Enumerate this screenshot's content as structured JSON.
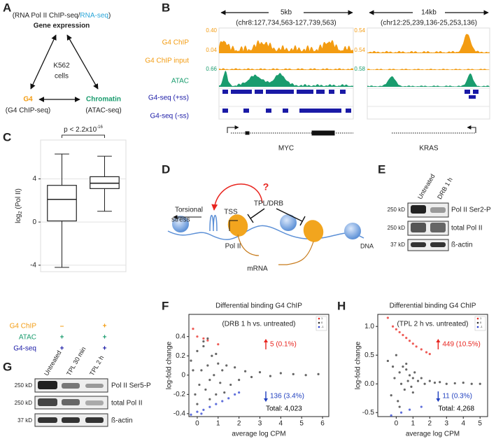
{
  "panel_labels": {
    "a": "A",
    "b": "B",
    "c": "C",
    "d": "D",
    "e": "E",
    "f": "F",
    "g": "G",
    "h": "H"
  },
  "panel_a": {
    "header_open": "(RNA Pol II ChIP-seq/",
    "header_rna": "RNA-seq",
    "header_close": ")",
    "title": "Gene expression",
    "center_line1": "K562",
    "center_line2": "cells",
    "g4": "G4",
    "g4_method": "(G4 ChIP-seq)",
    "chromatin": "Chromatin",
    "chromatin_method": "(ATAC-seq)"
  },
  "panel_b": {
    "tracks": [
      "G4 ChIP",
      "G4 ChIP input",
      "ATAC",
      "G4-seq (+ss)",
      "G4-seq (-ss)"
    ],
    "regions": [
      {
        "span": "5kb",
        "coords": "(chr8:127,734,563-127,739,563)",
        "scales": [
          "0.40",
          "0.04",
          "0.66"
        ],
        "gene": "MYC"
      },
      {
        "span": "14kb",
        "coords": "(chr12:25,239,136-25,253,136)",
        "scales": [
          "0.54",
          "0.54",
          "0.58"
        ],
        "gene": "KRAS"
      }
    ]
  },
  "panel_d": {
    "question": "?",
    "torsional_line1": "Torsional",
    "torsional_line2": "stress",
    "tss": "TSS",
    "inhibitors": "TPL/DRB",
    "pol2": "Pol II",
    "mrna": "mRNA",
    "dna": "DNA"
  },
  "panel_e": {
    "lanes": [
      "Untreated",
      "DRB 1 h"
    ],
    "blots": [
      {
        "size": "250 kD",
        "label": "Pol II Ser2-P"
      },
      {
        "size": "250 kD",
        "label": "total Pol II"
      },
      {
        "size": "37 kD",
        "label": "ß-actin"
      }
    ]
  },
  "panel_g": {
    "lanes": [
      "Untreated",
      "TPL 30 min",
      "TPL 2 h"
    ],
    "blots": [
      {
        "size": "250 kD",
        "label": "Pol II Ser5-P"
      },
      {
        "size": "250 kD",
        "label": "total Pol II"
      },
      {
        "size": "37 kD",
        "label": "ß-actin"
      }
    ]
  },
  "chart_data": [
    {
      "type": "box",
      "ylabel": "log",
      "ylabel_subscript": "2",
      "ylabel_suffix": "(Pol II)",
      "boxes": [
        {
          "whislo": -4.2,
          "q1": 0.1,
          "med": 2.1,
          "q3": 3.4,
          "whishi": 6.3
        },
        {
          "whislo": 1.0,
          "q1": 3.1,
          "med": 3.6,
          "q3": 4.2,
          "whishi": 6.1
        }
      ],
      "ylim": [
        -4.6,
        7.6
      ],
      "yticks": [
        -4,
        0,
        4
      ],
      "grid": true,
      "color": "#222222",
      "annotation": "p < 2.2x10",
      "annotation_superscript": "-16",
      "rows": [
        {
          "label": "G4 ChIP",
          "color": "#f39c12",
          "values": [
            "–",
            "+"
          ]
        },
        {
          "label": "ATAC",
          "color": "#1a9c6e",
          "values": [
            "+",
            "+"
          ]
        },
        {
          "label": "G4-seq",
          "color": "#1a1aa6",
          "values": [
            "+",
            "+"
          ]
        }
      ]
    },
    {
      "type": "scatter",
      "title": "Differential binding G4 ChIP",
      "subtitle": "(DRB 1 h vs. untreated)",
      "xlabel": "average log CPM",
      "ylabel": "log-fold change",
      "xlim": [
        -0.4,
        6.3
      ],
      "xticks": [
        0,
        1,
        2,
        3,
        4,
        5,
        6
      ],
      "ylim": [
        -0.43,
        0.63
      ],
      "yticks": [
        -0.4,
        -0.2,
        0,
        0.2,
        0.4
      ],
      "legend": "upper right",
      "series": [
        {
          "name": "1",
          "color": "#e8251f",
          "x": [
            -0.2,
            0.0,
            0.3,
            0.5,
            1.0
          ],
          "values": [
            0.48,
            0.4,
            0.38,
            0.36,
            0.32
          ]
        },
        {
          "name": "0",
          "color": "#333333",
          "x": [
            -0.3,
            -0.1,
            0,
            0.1,
            0.2,
            0.3,
            0.4,
            0.5,
            0.6,
            0.7,
            0.8,
            0.9,
            1.0,
            1.1,
            1.2,
            1.4,
            1.6,
            1.8,
            2.0,
            2.3,
            2.6,
            3.0,
            3.5,
            4.0,
            4.6,
            5.2,
            5.8,
            0.0,
            0.3,
            0.6,
            0.9,
            -0.2,
            0.5,
            1.3
          ],
          "values": [
            0.15,
            -0.2,
            0.25,
            -0.1,
            0.05,
            0.3,
            -0.15,
            0.1,
            -0.05,
            0.2,
            0.0,
            -0.2,
            0.12,
            -0.08,
            0.05,
            0.1,
            -0.1,
            0.08,
            -0.05,
            0.04,
            -0.02,
            0.03,
            -0.01,
            0.02,
            0.01,
            0.0,
            0.01,
            -0.3,
            0.35,
            -0.25,
            0.22,
            0.05,
            0.38,
            -0.18
          ]
        },
        {
          "name": "-1",
          "color": "#2a3fcf",
          "x": [
            -0.3,
            0,
            0.3,
            0.6,
            0.9,
            1.2,
            1.5,
            1.8,
            2.0,
            0.2
          ],
          "values": [
            -0.41,
            -0.38,
            -0.36,
            -0.33,
            -0.3,
            -0.27,
            -0.24,
            -0.2,
            -0.18,
            -0.4
          ]
        }
      ],
      "annotations": [
        {
          "text": "5 (0.1%)",
          "color": "#e8251f",
          "arrow": "up"
        },
        {
          "text": "136 (3.4%)",
          "color": "#1f3fbf",
          "arrow": "down"
        },
        {
          "text": "Total: 4,023",
          "color": "#000000"
        }
      ]
    },
    {
      "type": "scatter",
      "title": "Differential binding G4 ChIP",
      "subtitle": "(TPL 2 h vs. untreated)",
      "xlabel": "average log CPM",
      "ylabel": "log-fold change",
      "xlim": [
        -1.1,
        5.45
      ],
      "xticks": [
        0,
        1,
        2,
        3,
        4,
        5
      ],
      "ylim": [
        -0.57,
        1.21
      ],
      "yticks": [
        -0.5,
        {
          "value": 0,
          "label": "0.0"
        },
        0.5,
        {
          "value": 1,
          "label": "1.0"
        }
      ],
      "legend": "upper right",
      "series": [
        {
          "name": "1",
          "color": "#e8251f",
          "x": [
            -0.5,
            -0.2,
            0,
            0.2,
            0.4,
            0.6,
            0.8,
            1.0,
            1.2,
            1.5,
            1.8,
            2.0
          ],
          "values": [
            1.15,
            1.0,
            0.95,
            0.9,
            0.85,
            0.8,
            0.75,
            0.7,
            0.65,
            0.6,
            0.55,
            0.52
          ]
        },
        {
          "name": "0",
          "color": "#333333",
          "x": [
            -0.5,
            -0.3,
            -0.1,
            0,
            0.1,
            0.2,
            0.3,
            0.4,
            0.5,
            0.6,
            0.7,
            0.8,
            0.9,
            1.0,
            1.1,
            1.3,
            1.5,
            1.7,
            2.0,
            2.3,
            2.6,
            3.0,
            3.5,
            4.0,
            4.5,
            5.0,
            -0.2,
            0.2,
            0.6,
            1.0
          ],
          "values": [
            0.4,
            -0.2,
            0.1,
            0.5,
            -0.3,
            0.2,
            0.0,
            0.3,
            -0.1,
            0.25,
            0.05,
            0.15,
            -0.05,
            0.1,
            0.2,
            0.05,
            0.1,
            0.0,
            0.05,
            0.02,
            0.03,
            0.0,
            0.01,
            0.02,
            0.0,
            0.0,
            0.3,
            -0.4,
            0.35,
            -0.15
          ]
        },
        {
          "name": "-1",
          "color": "#2a3fcf",
          "x": [
            -0.3,
            0.3,
            0.8,
            1.5
          ],
          "values": [
            -0.55,
            -0.5,
            -0.45,
            -0.4
          ]
        }
      ],
      "annotations": [
        {
          "text": "449 (10.5%)",
          "color": "#e8251f",
          "arrow": "up"
        },
        {
          "text": "11 (0.3%)",
          "color": "#1f3fbf",
          "arrow": "down"
        },
        {
          "text": "Total: 4,268",
          "color": "#000000"
        }
      ]
    }
  ]
}
